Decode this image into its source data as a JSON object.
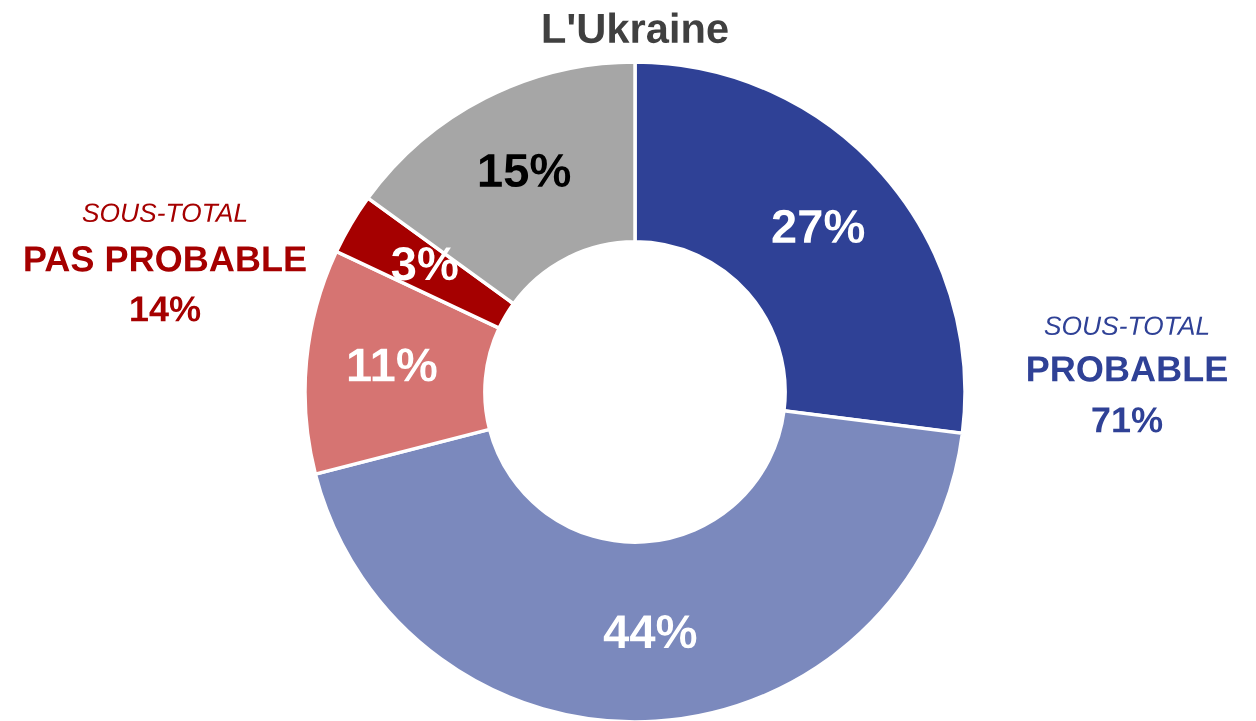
{
  "chart_data": {
    "type": "donut",
    "title": "L'Ukraine",
    "categories": [
      null,
      null,
      null,
      null,
      null
    ],
    "values": [
      27,
      44,
      11,
      3,
      15
    ],
    "colors": [
      "#2f4196",
      "#7b89bd",
      "#d67472",
      "#a50000",
      "#a6a6a6"
    ],
    "value_labels": [
      "27%",
      "44%",
      "11%",
      "3%",
      "15%"
    ],
    "annotations": [
      "SOUS-TOTAL",
      "PAS PROBABLE",
      "14%",
      "SOUS-TOTAL",
      "PROBABLE",
      "71%"
    ]
  }
}
